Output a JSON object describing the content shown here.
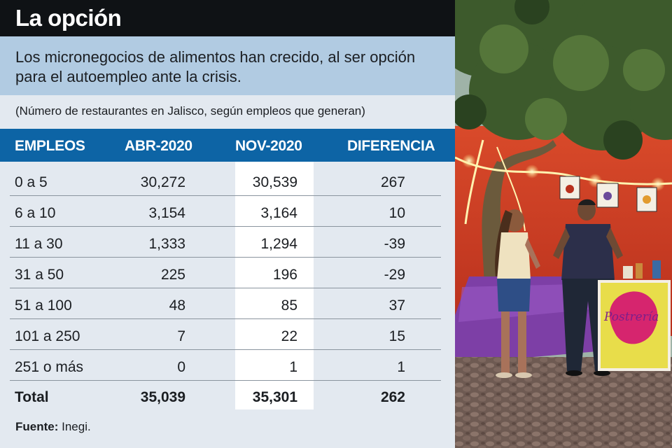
{
  "title": "La opción",
  "subtitle": "Los micronegocios de alimentos han crecido, al ser opción para el autoempleo ante la crisis.",
  "note": "(Número de restaurantes en Jalisco, según empleos que generan)",
  "source_label": "Fuente:",
  "source_value": "Inegi.",
  "photo_sign_text": "Postrería",
  "colors": {
    "title_bg": "#0f1215",
    "subtitle_bg": "#b1cbe2",
    "panel_bg": "#e3e9f0",
    "header_bg": "#0d64a5",
    "highlight_column": "#ffffff"
  },
  "chart_data": {
    "type": "table",
    "columns": [
      "EMPLEOS",
      "ABR-2020",
      "NOV-2020",
      "DIFERENCIA"
    ],
    "rows": [
      [
        "0 a 5",
        "30,272",
        "30,539",
        "267"
      ],
      [
        "6 a 10",
        "3,154",
        "3,164",
        "10"
      ],
      [
        "11 a 30",
        "1,333",
        "1,294",
        "-39"
      ],
      [
        "31 a 50",
        "225",
        "196",
        "-29"
      ],
      [
        "51 a 100",
        "48",
        "85",
        "37"
      ],
      [
        "101 a 250",
        "7",
        "22",
        "15"
      ],
      [
        "251 o más",
        "0",
        "1",
        "1"
      ]
    ],
    "total": [
      "Total",
      "35,039",
      "35,301",
      "262"
    ]
  }
}
